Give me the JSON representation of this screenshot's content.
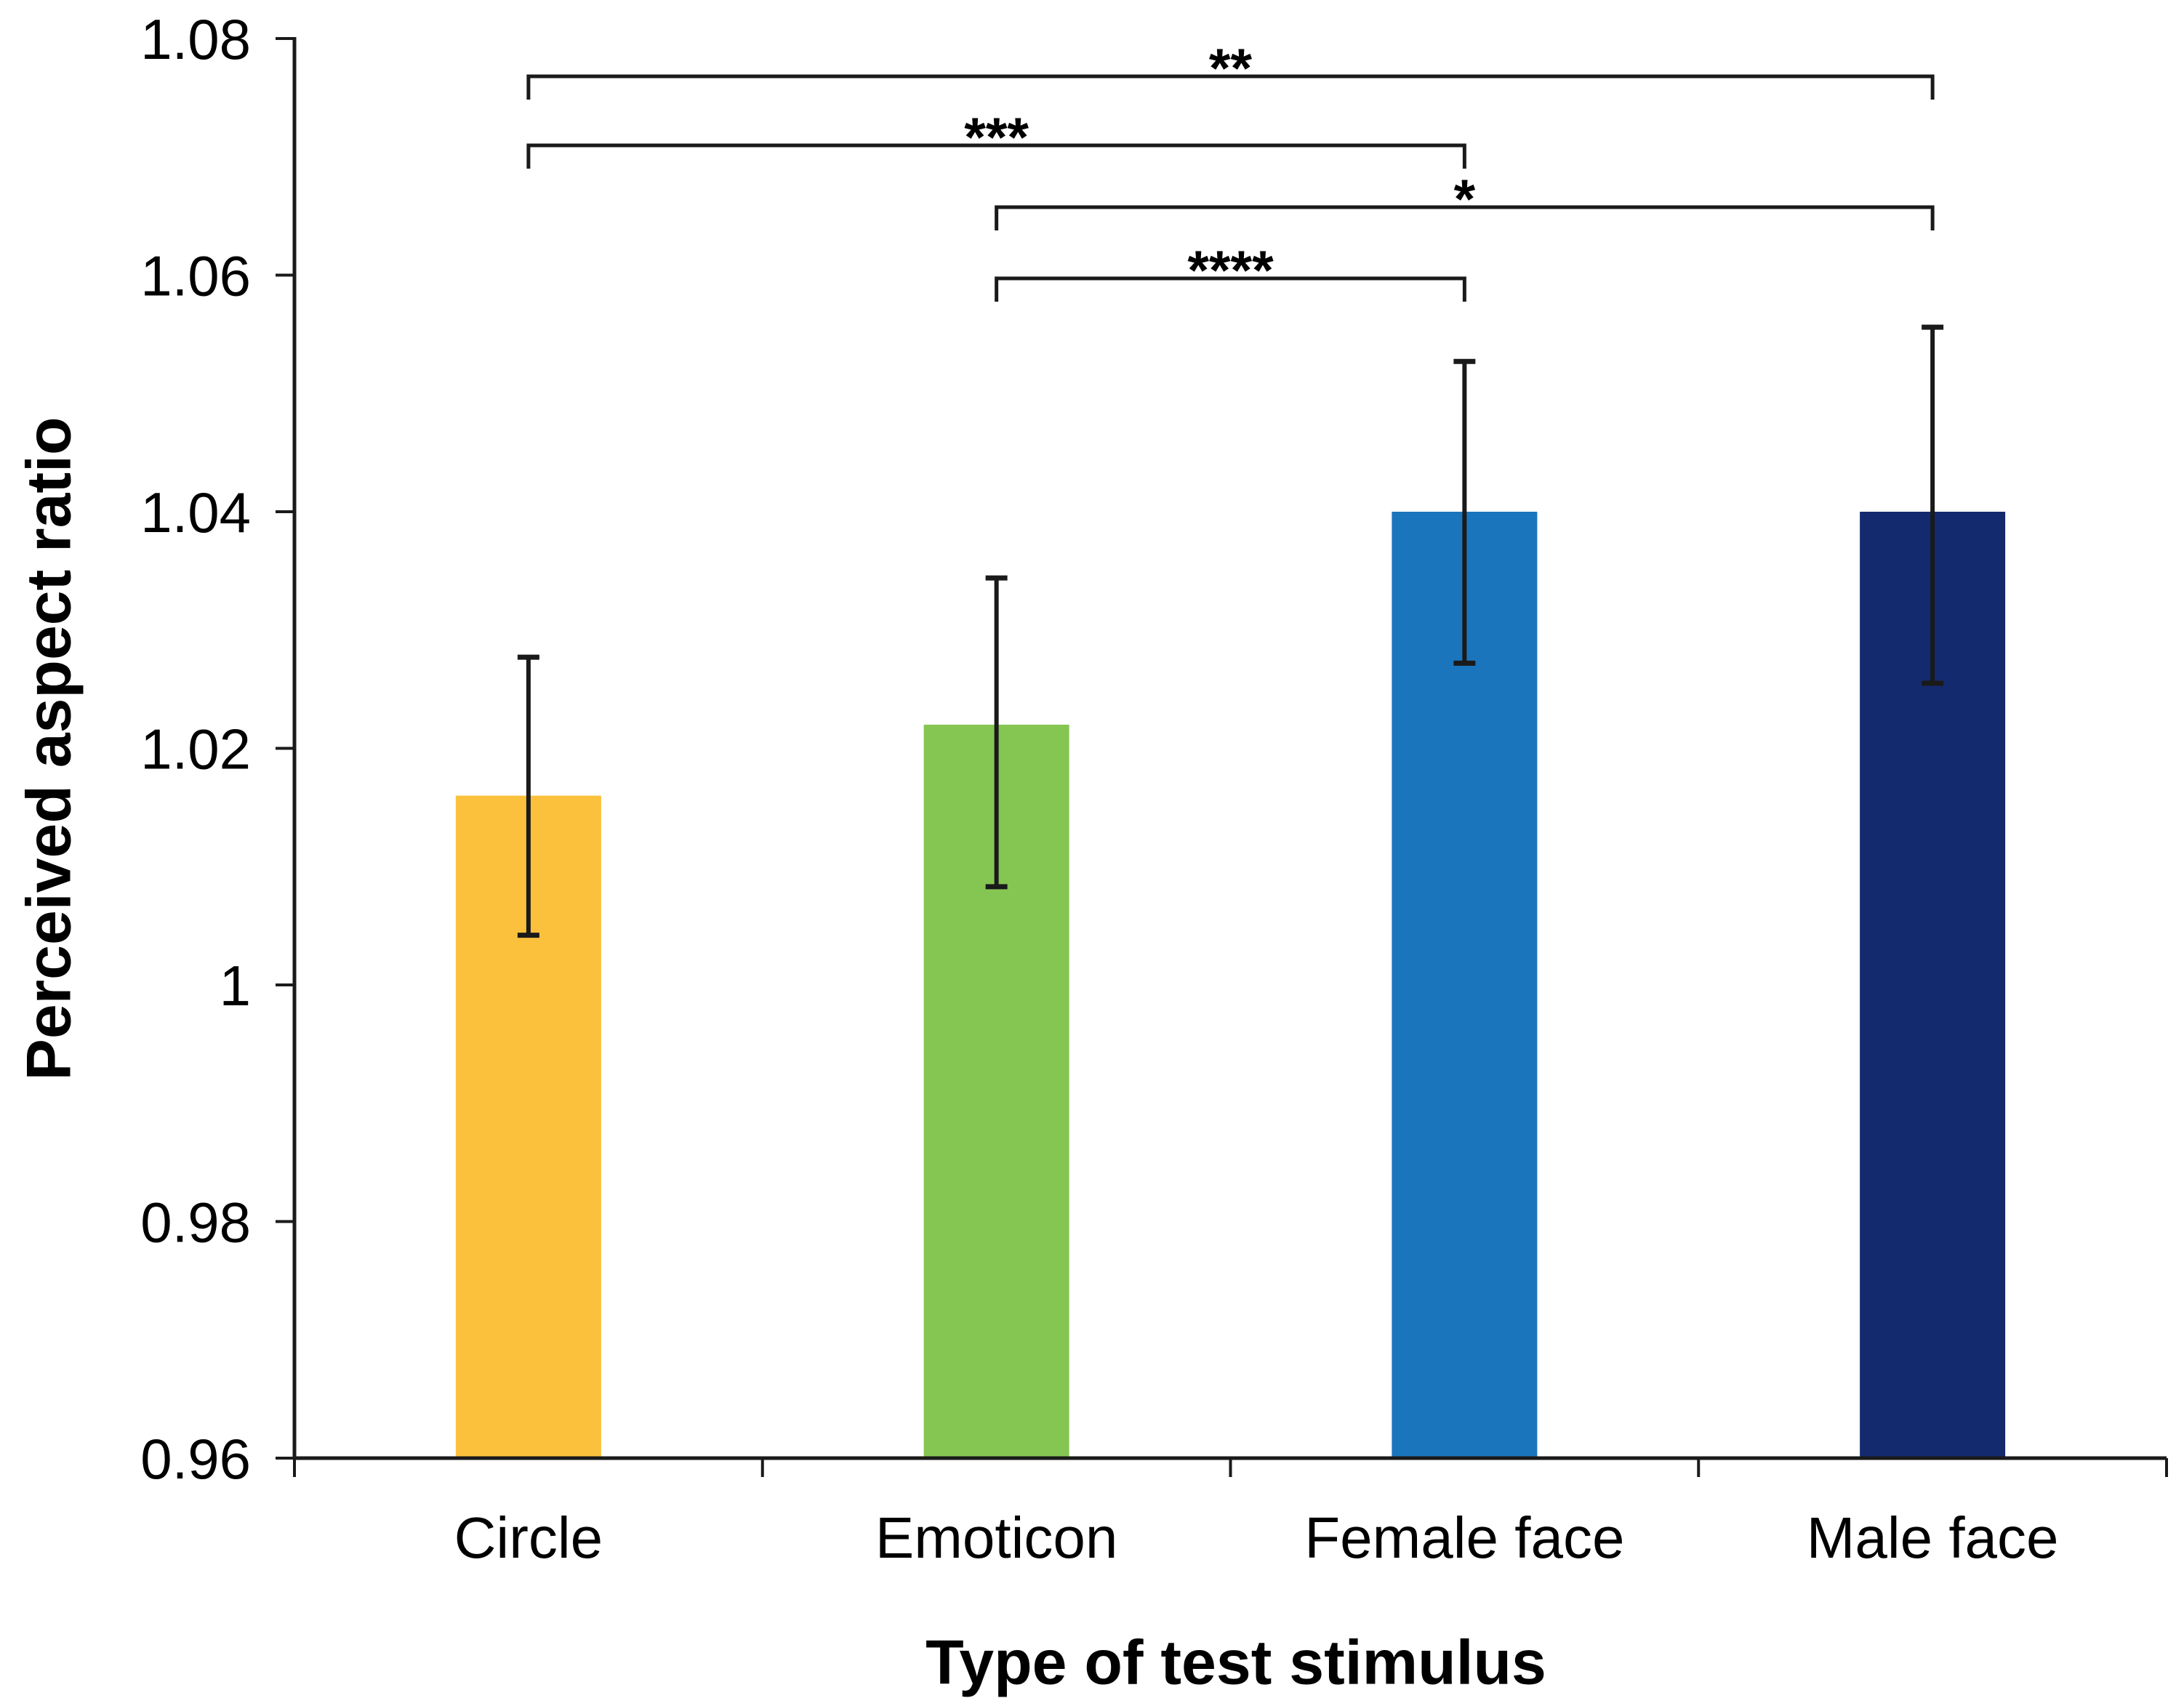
{
  "figure": {
    "background": "#ffffff",
    "axis_color": "#1a1a1a",
    "text_color": "#000000"
  },
  "chart_data": {
    "type": "bar",
    "title": "",
    "xlabel": "Type of test stimulus",
    "ylabel": "Perceived aspect ratio",
    "categories": [
      "Circle",
      "Emoticon",
      "Female face",
      "Male face"
    ],
    "values": [
      1.016,
      1.022,
      1.04,
      1.04
    ],
    "bar_colors": [
      "#FBC13D",
      "#85C653",
      "#1B75BC",
      "#142A6E"
    ],
    "error_bars": [
      {
        "upper": 1.0277,
        "lower": 1.0042
      },
      {
        "upper": 1.0344,
        "lower": 1.0083
      },
      {
        "upper": 1.0527,
        "lower": 1.0272
      },
      {
        "upper": 1.0556,
        "lower": 1.0255
      }
    ],
    "y_axis": {
      "min": 0.96,
      "max": 1.08,
      "tick_step": 0.02,
      "tick_values": [
        1.08,
        1.06,
        1.04,
        1.02,
        1,
        0.98,
        0.96
      ],
      "tick_labels": [
        "1.08",
        "1.06",
        "1.04",
        "1.02",
        "1",
        "0.98",
        "0.96"
      ]
    },
    "grid": false,
    "legend": null,
    "significance_brackets": [
      {
        "from": "Circle",
        "to": "Male face",
        "label": "**"
      },
      {
        "from": "Circle",
        "to": "Female face",
        "label": "***"
      },
      {
        "from": "Emoticon",
        "to": "Male face",
        "label": "*"
      },
      {
        "from": "Emoticon",
        "to": "Female face",
        "label": "****"
      }
    ]
  }
}
